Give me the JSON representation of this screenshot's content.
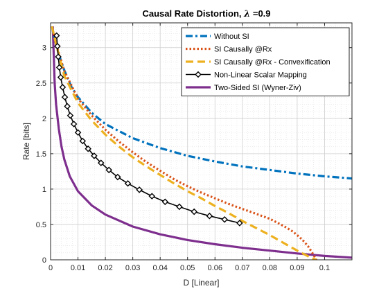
{
  "chart_data": {
    "type": "line",
    "title_main": "Causal Rate Distortion, ",
    "title_symbol": "λ",
    "title_suffix": " =0.9",
    "xlabel": "D [Linear]",
    "ylabel": "Rate [bits]",
    "xlim": [
      0,
      0.11
    ],
    "ylim": [
      0,
      3.35
    ],
    "xticks": [
      0,
      0.01,
      0.02,
      0.03,
      0.04,
      0.05,
      0.06,
      0.07,
      0.08,
      0.09,
      0.1
    ],
    "xtick_labels": [
      "0",
      "0.01",
      "0.02",
      "0.03",
      "0.04",
      "0.05",
      "0.06",
      "0.07",
      "0.08",
      "0.09",
      "0.1"
    ],
    "yticks": [
      0,
      0.5,
      1,
      1.5,
      2,
      2.5,
      3
    ],
    "ytick_labels": [
      "0",
      "0.5",
      "1",
      "1.5",
      "2",
      "2.5",
      "3"
    ],
    "grid": true,
    "minor_grid": true,
    "legend_position": "top-right",
    "series": [
      {
        "name": "Without SI",
        "color": "#0072BD",
        "style": "dashdot",
        "x": [
          0.0005,
          0.001,
          0.002,
          0.003,
          0.005,
          0.0075,
          0.01,
          0.015,
          0.02,
          0.03,
          0.04,
          0.05,
          0.06,
          0.07,
          0.08,
          0.09,
          0.1,
          0.11
        ],
        "y": [
          3.3,
          3.2,
          3.05,
          2.9,
          2.68,
          2.45,
          2.3,
          2.08,
          1.92,
          1.72,
          1.58,
          1.47,
          1.39,
          1.32,
          1.27,
          1.22,
          1.18,
          1.15
        ]
      },
      {
        "name": "SI Causally @Rx",
        "color": "#D95319",
        "style": "dotted",
        "x": [
          0.0005,
          0.002,
          0.005,
          0.01,
          0.015,
          0.02,
          0.025,
          0.03,
          0.035,
          0.04,
          0.045,
          0.05,
          0.055,
          0.06,
          0.065,
          0.07,
          0.075,
          0.08,
          0.085,
          0.088,
          0.09,
          0.092,
          0.094,
          0.095,
          0.096,
          0.097
        ],
        "y": [
          3.3,
          3.05,
          2.67,
          2.28,
          2.04,
          1.84,
          1.67,
          1.52,
          1.38,
          1.26,
          1.14,
          1.04,
          0.95,
          0.87,
          0.79,
          0.72,
          0.65,
          0.58,
          0.48,
          0.41,
          0.35,
          0.28,
          0.19,
          0.13,
          0.07,
          0.0
        ]
      },
      {
        "name": "SI Causally @Rx - Convexification",
        "color": "#EDB120",
        "style": "dashed",
        "x": [
          0.0005,
          0.002,
          0.005,
          0.01,
          0.015,
          0.02,
          0.025,
          0.03,
          0.035,
          0.04,
          0.045,
          0.05,
          0.055,
          0.06,
          0.065,
          0.07,
          0.075,
          0.08,
          0.085,
          0.09,
          0.095,
          0.097
        ],
        "y": [
          3.3,
          3.05,
          2.6,
          2.22,
          1.97,
          1.77,
          1.6,
          1.45,
          1.32,
          1.2,
          1.08,
          0.97,
          0.87,
          0.76,
          0.66,
          0.55,
          0.45,
          0.35,
          0.24,
          0.13,
          0.03,
          0.0
        ]
      },
      {
        "name": "Non-Linear Scalar Mapping",
        "color": "#000000",
        "style": "solid-diamond",
        "x": [
          0.0022,
          0.0025,
          0.0028,
          0.0032,
          0.0037,
          0.0044,
          0.0052,
          0.0061,
          0.0072,
          0.0085,
          0.01,
          0.0117,
          0.0137,
          0.0159,
          0.0184,
          0.0213,
          0.0245,
          0.0282,
          0.0324,
          0.037,
          0.0418,
          0.047,
          0.0524,
          0.058,
          0.0635,
          0.069
        ],
        "y": [
          3.17,
          3.02,
          2.87,
          2.72,
          2.58,
          2.44,
          2.3,
          2.17,
          2.04,
          1.92,
          1.8,
          1.68,
          1.57,
          1.47,
          1.37,
          1.27,
          1.17,
          1.08,
          0.99,
          0.9,
          0.82,
          0.75,
          0.68,
          0.62,
          0.57,
          0.52
        ]
      },
      {
        "name": "Two-Sided SI (Wyner-Ziv)",
        "color": "#7E2F8E",
        "style": "solid",
        "x": [
          0.0008,
          0.001,
          0.0015,
          0.002,
          0.003,
          0.004,
          0.005,
          0.007,
          0.01,
          0.015,
          0.02,
          0.03,
          0.04,
          0.05,
          0.06,
          0.07,
          0.08,
          0.09,
          0.1,
          0.11
        ],
        "y": [
          3.3,
          3.05,
          2.5,
          2.2,
          1.85,
          1.6,
          1.42,
          1.18,
          0.97,
          0.77,
          0.64,
          0.47,
          0.36,
          0.28,
          0.22,
          0.17,
          0.13,
          0.09,
          0.055,
          0.03
        ]
      }
    ]
  }
}
